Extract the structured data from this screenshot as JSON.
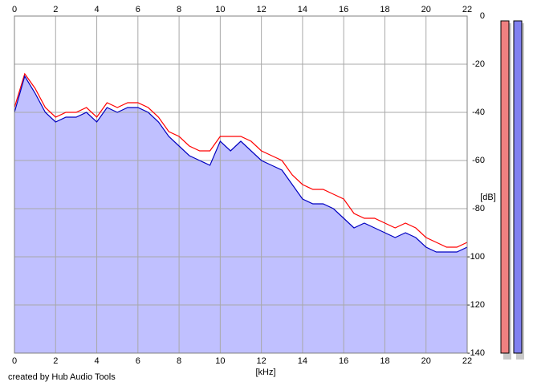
{
  "chart_data": {
    "type": "line",
    "x_label": "[kHz]",
    "y_label": "[dB]",
    "footer": "created by Hub Audio Tools",
    "x": [
      0,
      0.5,
      1,
      1.5,
      2,
      2.5,
      3,
      3.5,
      4,
      4.5,
      5,
      5.5,
      6,
      6.5,
      7,
      7.5,
      8,
      8.5,
      9,
      9.5,
      10,
      10.5,
      11,
      11.5,
      12,
      12.5,
      13,
      13.5,
      14,
      14.5,
      15,
      15.5,
      16,
      16.5,
      17,
      17.5,
      18,
      18.5,
      19,
      19.5,
      20,
      20.5,
      21,
      21.5,
      22
    ],
    "series": [
      {
        "color": "#ff0000",
        "values": [
          -38,
          -24,
          -30,
          -38,
          -42,
          -40,
          -40,
          -38,
          -42,
          -36,
          -38,
          -36,
          -36,
          -38,
          -42,
          -48,
          -50,
          -54,
          -56,
          -56,
          -50,
          -50,
          -50,
          -52,
          -56,
          -58,
          -60,
          -66,
          -70,
          -72,
          -72,
          -74,
          -76,
          -82,
          -84,
          -84,
          -86,
          -88,
          -86,
          -88,
          -92,
          -94,
          -96,
          -96,
          -94
        ]
      },
      {
        "color": "#0000c0",
        "fill": "#c0c0ff",
        "values": [
          -40,
          -25,
          -32,
          -40,
          -44,
          -42,
          -42,
          -40,
          -44,
          -38,
          -40,
          -38,
          -38,
          -40,
          -44,
          -50,
          -54,
          -58,
          -60,
          -62,
          -52,
          -56,
          -52,
          -56,
          -60,
          -62,
          -64,
          -70,
          -76,
          -78,
          -78,
          -80,
          -84,
          -88,
          -86,
          -88,
          -90,
          -92,
          -90,
          -92,
          -96,
          -98,
          -98,
          -98,
          -96
        ]
      }
    ],
    "meters": [
      {
        "color": "#f08080",
        "value": -2
      },
      {
        "color": "#8080f0",
        "value": -2
      }
    ],
    "xlim": [
      0,
      22
    ],
    "xticks": [
      0,
      2,
      4,
      6,
      8,
      10,
      12,
      14,
      16,
      18,
      20,
      22
    ],
    "ylim": [
      -140,
      0
    ],
    "yticks": [
      0,
      -20,
      -40,
      -60,
      -80,
      -100,
      -120,
      -140
    ],
    "grid": true
  }
}
